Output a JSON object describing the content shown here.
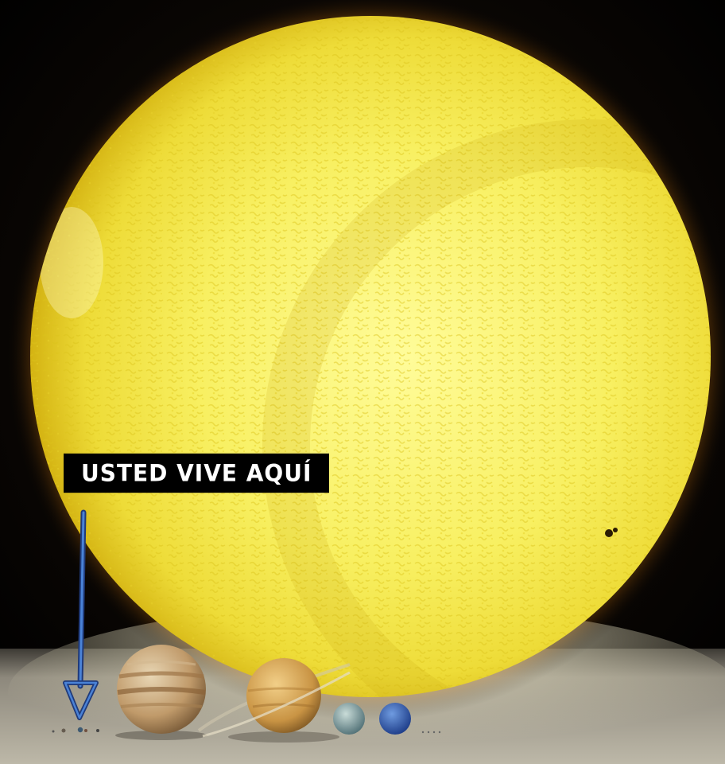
{
  "caption": {
    "text": "USTED VIVE AQUÍ"
  },
  "colors": {
    "sun_core": "#fbf884",
    "sun_mid": "#f4ec52",
    "sun_edge": "#d8bd14",
    "floor_light": "#cdc8b8",
    "floor_dark": "#6f6a60",
    "arrow": "#3b6fc4",
    "caption_bg": "#000000",
    "caption_text": "#ffffff"
  }
}
